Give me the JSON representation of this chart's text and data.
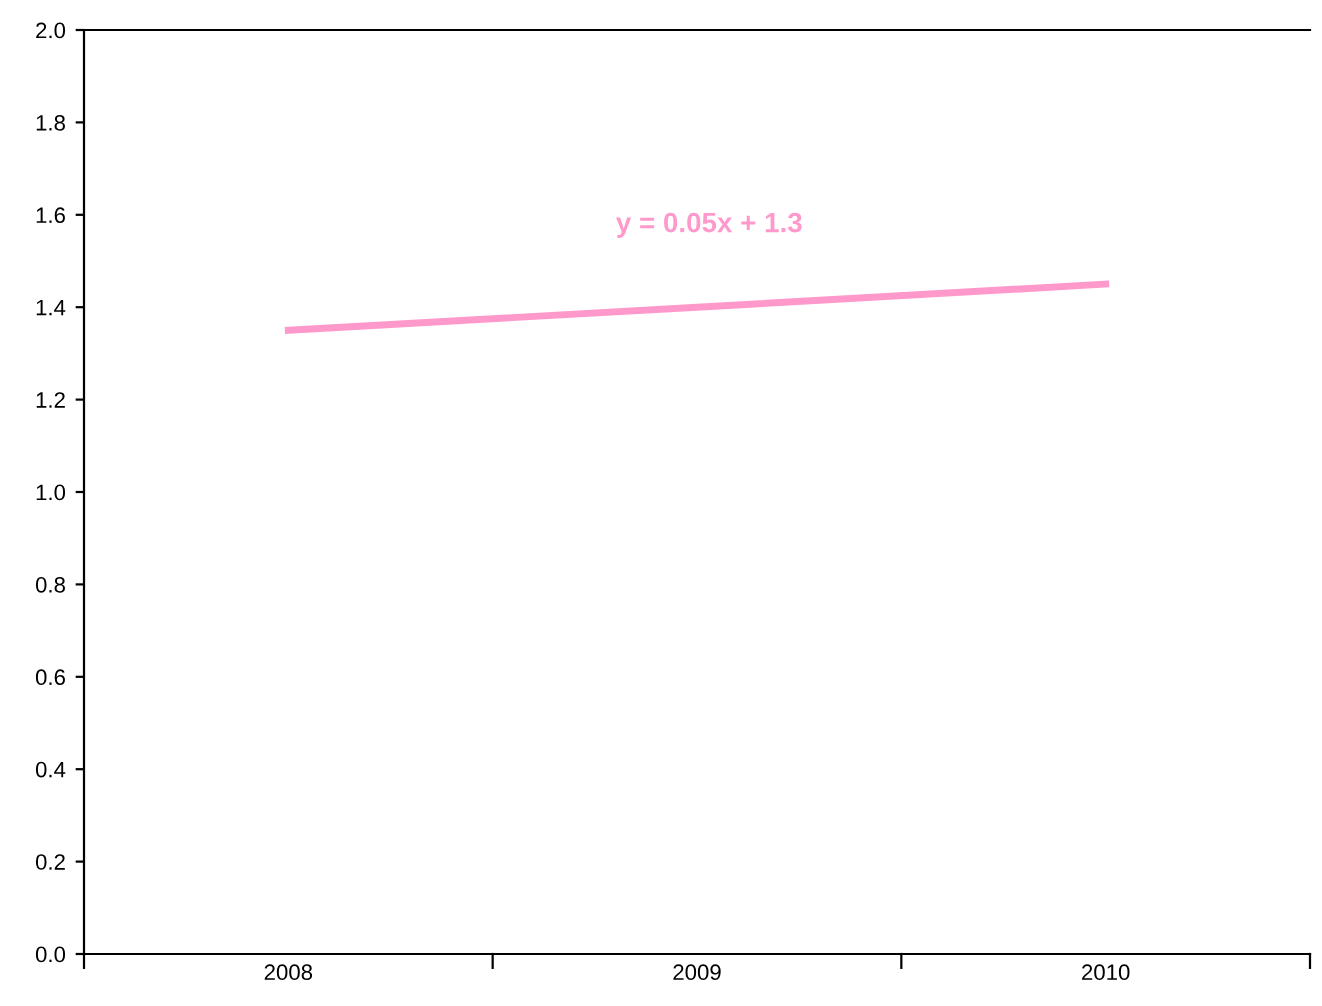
{
  "chart_data": {
    "type": "line",
    "categories": [
      "2008",
      "2009",
      "2010"
    ],
    "series": [
      {
        "color": "#ff99cc",
        "values": [
          1.35,
          1.4,
          1.45
        ]
      }
    ],
    "ylim": [
      0,
      2.0
    ],
    "yticks": [
      {
        "value": 0,
        "label": "0.0"
      },
      {
        "value": 0.2,
        "label": "0.2"
      },
      {
        "value": 0.4,
        "label": "0.4"
      },
      {
        "value": 0.6,
        "label": "0.6"
      },
      {
        "value": 0.8,
        "label": "0.8"
      },
      {
        "value": 1.0,
        "label": "1.0"
      },
      {
        "value": 1.2,
        "label": "1.2"
      },
      {
        "value": 1.4,
        "label": "1.4"
      },
      {
        "value": 1.6,
        "label": "1.6"
      },
      {
        "value": 1.8,
        "label": "1.8"
      },
      {
        "value": 2.0,
        "label": "2.0"
      }
    ],
    "annotations": [
      "y = 0.05x + 1.3"
    ],
    "grid": false,
    "marker": "none",
    "line_style": "solid"
  }
}
